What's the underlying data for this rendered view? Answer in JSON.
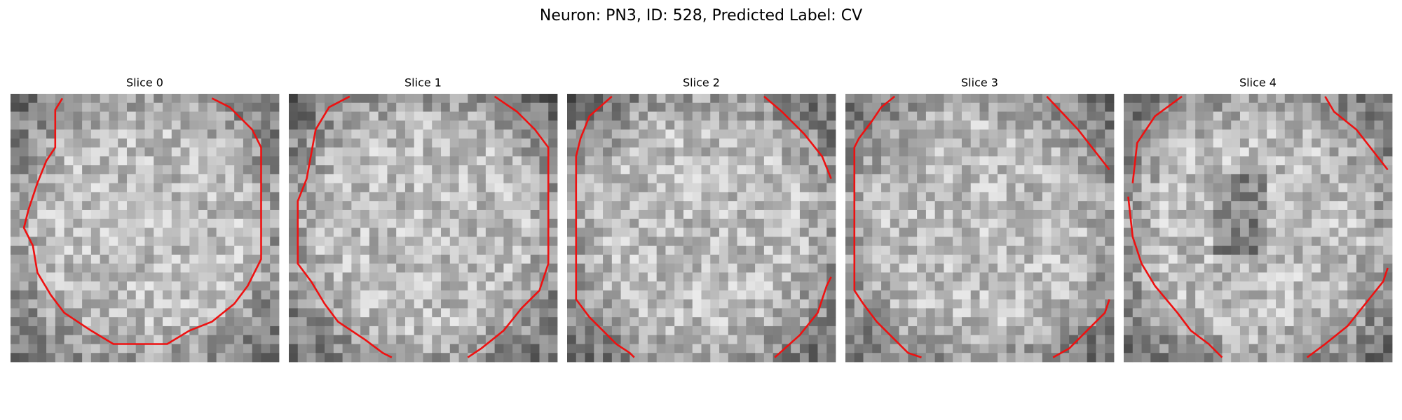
{
  "header": {
    "title": "Neuron: PN3, ID: 528, Predicted Label: CV"
  },
  "panels": [
    {
      "title": "Slice 0"
    },
    {
      "title": "Slice 1"
    },
    {
      "title": "Slice 2"
    },
    {
      "title": "Slice 3"
    },
    {
      "title": "Slice 4"
    }
  ]
}
